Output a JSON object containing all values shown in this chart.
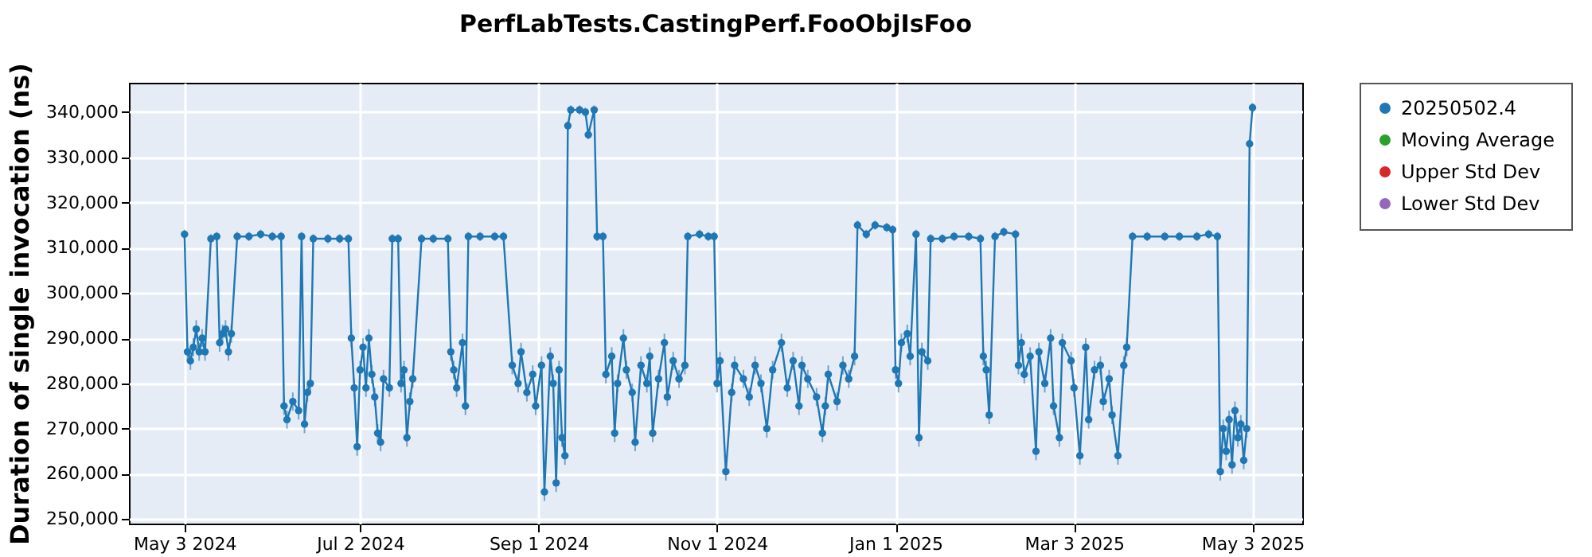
{
  "chart_data": {
    "type": "line",
    "title": "PerfLabTests.CastingPerf.FooObjIsFoo",
    "ylabel": "Duration of single invocation (ns)",
    "xlim": [
      "2024-04-14",
      "2025-05-20"
    ],
    "xticks": [
      {
        "value": "2024-05-03",
        "label": "May 3 2024"
      },
      {
        "value": "2024-07-02",
        "label": "Jul 2 2024"
      },
      {
        "value": "2024-09-01",
        "label": "Sep 1 2024"
      },
      {
        "value": "2024-11-01",
        "label": "Nov 1 2024"
      },
      {
        "value": "2025-01-01",
        "label": "Jan 1 2025"
      },
      {
        "value": "2025-03-03",
        "label": "Mar 3 2025"
      },
      {
        "value": "2025-05-03",
        "label": "May 3 2025"
      }
    ],
    "ylim": [
      249000,
      346500
    ],
    "yticks": [
      {
        "value": 250000,
        "label": "250,000"
      },
      {
        "value": 260000,
        "label": "260,000"
      },
      {
        "value": 270000,
        "label": "270,000"
      },
      {
        "value": 280000,
        "label": "280,000"
      },
      {
        "value": 290000,
        "label": "290,000"
      },
      {
        "value": 300000,
        "label": "300,000"
      },
      {
        "value": 310000,
        "label": "310,000"
      },
      {
        "value": 320000,
        "label": "320,000"
      },
      {
        "value": 330000,
        "label": "330,000"
      },
      {
        "value": 340000,
        "label": "340,000"
      }
    ],
    "grid": true,
    "legend": "right",
    "marker": "circle",
    "line_style": "solid",
    "series": [
      {
        "name": "20250502.4",
        "color": "#1f77b4",
        "x": [
          "2024-05-03",
          "2024-05-04",
          "2024-05-05",
          "2024-05-06",
          "2024-05-07",
          "2024-05-08",
          "2024-05-09",
          "2024-05-10",
          "2024-05-12",
          "2024-05-14",
          "2024-05-15",
          "2024-05-16",
          "2024-05-17",
          "2024-05-18",
          "2024-05-19",
          "2024-05-21",
          "2024-05-25",
          "2024-05-29",
          "2024-06-02",
          "2024-06-05",
          "2024-06-06",
          "2024-06-07",
          "2024-06-09",
          "2024-06-11",
          "2024-06-12",
          "2024-06-13",
          "2024-06-14",
          "2024-06-15",
          "2024-06-16",
          "2024-06-21",
          "2024-06-25",
          "2024-06-28",
          "2024-06-29",
          "2024-06-30",
          "2024-07-01",
          "2024-07-02",
          "2024-07-03",
          "2024-07-04",
          "2024-07-05",
          "2024-07-06",
          "2024-07-07",
          "2024-07-08",
          "2024-07-09",
          "2024-07-10",
          "2024-07-12",
          "2024-07-13",
          "2024-07-15",
          "2024-07-16",
          "2024-07-17",
          "2024-07-18",
          "2024-07-19",
          "2024-07-20",
          "2024-07-23",
          "2024-07-27",
          "2024-08-01",
          "2024-08-02",
          "2024-08-03",
          "2024-08-04",
          "2024-08-06",
          "2024-08-07",
          "2024-08-08",
          "2024-08-12",
          "2024-08-17",
          "2024-08-20",
          "2024-08-23",
          "2024-08-25",
          "2024-08-26",
          "2024-08-28",
          "2024-08-30",
          "2024-08-31",
          "2024-09-02",
          "2024-09-03",
          "2024-09-05",
          "2024-09-06",
          "2024-09-07",
          "2024-09-08",
          "2024-09-09",
          "2024-09-10",
          "2024-09-11",
          "2024-09-12",
          "2024-09-15",
          "2024-09-17",
          "2024-09-18",
          "2024-09-20",
          "2024-09-21",
          "2024-09-23",
          "2024-09-24",
          "2024-09-26",
          "2024-09-27",
          "2024-09-28",
          "2024-09-30",
          "2024-10-01",
          "2024-10-03",
          "2024-10-04",
          "2024-10-06",
          "2024-10-08",
          "2024-10-09",
          "2024-10-10",
          "2024-10-12",
          "2024-10-14",
          "2024-10-15",
          "2024-10-17",
          "2024-10-19",
          "2024-10-21",
          "2024-10-22",
          "2024-10-26",
          "2024-10-29",
          "2024-10-31",
          "2024-11-01",
          "2024-11-02",
          "2024-11-04",
          "2024-11-06",
          "2024-11-07",
          "2024-11-10",
          "2024-11-12",
          "2024-11-14",
          "2024-11-16",
          "2024-11-18",
          "2024-11-20",
          "2024-11-23",
          "2024-11-25",
          "2024-11-27",
          "2024-11-29",
          "2024-11-30",
          "2024-12-02",
          "2024-12-05",
          "2024-12-07",
          "2024-12-08",
          "2024-12-09",
          "2024-12-12",
          "2024-12-14",
          "2024-12-16",
          "2024-12-18",
          "2024-12-19",
          "2024-12-22",
          "2024-12-25",
          "2024-12-29",
          "2024-12-31",
          "2025-01-01",
          "2025-01-02",
          "2025-01-03",
          "2025-01-05",
          "2025-01-06",
          "2025-01-08",
          "2025-01-09",
          "2025-01-10",
          "2025-01-12",
          "2025-01-13",
          "2025-01-17",
          "2025-01-21",
          "2025-01-26",
          "2025-01-30",
          "2025-01-31",
          "2025-02-01",
          "2025-02-02",
          "2025-02-04",
          "2025-02-07",
          "2025-02-11",
          "2025-02-12",
          "2025-02-13",
          "2025-02-14",
          "2025-02-16",
          "2025-02-18",
          "2025-02-19",
          "2025-02-21",
          "2025-02-23",
          "2025-02-24",
          "2025-02-26",
          "2025-02-27",
          "2025-03-02",
          "2025-03-03",
          "2025-03-05",
          "2025-03-07",
          "2025-03-08",
          "2025-03-10",
          "2025-03-12",
          "2025-03-13",
          "2025-03-15",
          "2025-03-16",
          "2025-03-18",
          "2025-03-20",
          "2025-03-21",
          "2025-03-23",
          "2025-03-28",
          "2025-04-03",
          "2025-04-08",
          "2025-04-14",
          "2025-04-18",
          "2025-04-21",
          "2025-04-22",
          "2025-04-23",
          "2025-04-24",
          "2025-04-25",
          "2025-04-26",
          "2025-04-27",
          "2025-04-28",
          "2025-04-29",
          "2025-04-30",
          "2025-05-01",
          "2025-05-02",
          "2025-05-03"
        ],
        "values": [
          313000,
          287000,
          285000,
          288000,
          292000,
          287000,
          290000,
          287000,
          312000,
          312500,
          289000,
          291000,
          292000,
          287000,
          291000,
          312500,
          312500,
          313000,
          312500,
          312500,
          275000,
          272000,
          276000,
          274000,
          312500,
          271000,
          278000,
          280000,
          312000,
          312000,
          312000,
          312000,
          290000,
          279000,
          266000,
          283000,
          288000,
          279000,
          290000,
          282000,
          277000,
          269000,
          267000,
          281000,
          279000,
          312000,
          312000,
          280000,
          283000,
          268000,
          276000,
          281000,
          312000,
          312000,
          312000,
          287000,
          283000,
          279000,
          289000,
          275000,
          312500,
          312500,
          312500,
          312500,
          284000,
          280000,
          287000,
          278000,
          282000,
          275000,
          284000,
          256000,
          286000,
          280000,
          258000,
          283000,
          268000,
          264000,
          337000,
          340500,
          340500,
          340000,
          335000,
          340500,
          312500,
          312500,
          282000,
          286000,
          269000,
          280000,
          290000,
          283000,
          278000,
          267000,
          284000,
          280000,
          286000,
          269000,
          281000,
          289000,
          277000,
          285000,
          281000,
          284000,
          312500,
          313000,
          312500,
          312500,
          280000,
          285000,
          260500,
          278000,
          284000,
          281000,
          277000,
          284000,
          280000,
          270000,
          283000,
          289000,
          279000,
          285000,
          275000,
          284000,
          281000,
          277000,
          269000,
          275000,
          282000,
          276000,
          284000,
          281000,
          286000,
          315000,
          313000,
          315000,
          314500,
          314000,
          283000,
          280000,
          289000,
          291000,
          286000,
          313000,
          268000,
          287000,
          285000,
          312000,
          312000,
          312500,
          312500,
          312000,
          286000,
          283000,
          273000,
          312500,
          313500,
          313000,
          284000,
          289000,
          282000,
          286000,
          265000,
          287000,
          280000,
          290000,
          275000,
          268000,
          289000,
          285000,
          279000,
          264000,
          288000,
          272000,
          283000,
          284000,
          276000,
          281000,
          273000,
          264000,
          284000,
          288000,
          312500,
          312500,
          312500,
          312500,
          312500,
          313000,
          312500,
          260500,
          270000,
          265000,
          272000,
          262000,
          274000,
          268000,
          271000,
          263000,
          270000,
          333000,
          341000
        ],
        "errors": [
          1000,
          2000,
          2000,
          2000,
          2000,
          2000,
          2000,
          2000,
          1000,
          1000,
          2000,
          2000,
          2000,
          2000,
          2000,
          1000,
          1000,
          1000,
          1000,
          1000,
          2000,
          2000,
          2000,
          2000,
          1000,
          2000,
          2000,
          2000,
          1000,
          1000,
          1000,
          1000,
          2000,
          2000,
          2000,
          2000,
          2000,
          2000,
          2000,
          2000,
          2000,
          2000,
          2000,
          2000,
          2000,
          1000,
          1000,
          2000,
          2000,
          2000,
          2000,
          2000,
          1000,
          1000,
          1000,
          2000,
          2000,
          2000,
          2000,
          2000,
          1000,
          1000,
          1000,
          1000,
          2000,
          2000,
          2000,
          2000,
          2000,
          2000,
          2000,
          2000,
          2000,
          2000,
          2000,
          2000,
          2000,
          2000,
          1000,
          1000,
          1000,
          1000,
          1000,
          1000,
          1000,
          1000,
          2000,
          2000,
          2000,
          2000,
          2000,
          2000,
          2000,
          2000,
          2000,
          2000,
          2000,
          2000,
          2000,
          2000,
          2000,
          2000,
          2000,
          2000,
          1000,
          1000,
          1000,
          1000,
          2000,
          2000,
          2000,
          2000,
          2000,
          2000,
          2000,
          2000,
          2000,
          2000,
          2000,
          2000,
          2000,
          2000,
          2000,
          2000,
          2000,
          2000,
          2000,
          2000,
          2000,
          2000,
          2000,
          2000,
          2000,
          1000,
          1000,
          1000,
          1000,
          1000,
          2000,
          2000,
          2000,
          2000,
          2000,
          1000,
          2000,
          2000,
          2000,
          1000,
          1000,
          1000,
          1000,
          1000,
          2000,
          2000,
          2000,
          1000,
          1000,
          1000,
          2000,
          2000,
          2000,
          2000,
          2000,
          2000,
          2000,
          2000,
          2000,
          2000,
          2000,
          2000,
          2000,
          2000,
          2000,
          2000,
          2000,
          2000,
          2000,
          2000,
          2000,
          2000,
          2000,
          2000,
          1000,
          1000,
          1000,
          1000,
          1000,
          1000,
          1000,
          2000,
          2000,
          2000,
          2000,
          2000,
          2000,
          2000,
          2000,
          2000,
          2000,
          1000,
          1000
        ]
      },
      {
        "name": "Moving Average",
        "color": "#2ca02c"
      },
      {
        "name": "Upper Std Dev",
        "color": "#d62728"
      },
      {
        "name": "Lower Std Dev",
        "color": "#9467bd"
      }
    ]
  }
}
